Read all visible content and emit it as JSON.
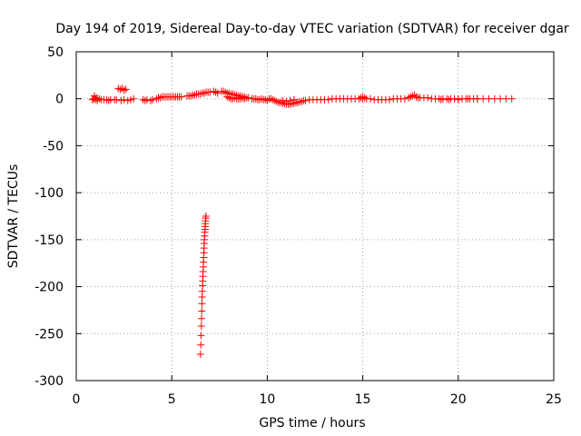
{
  "chart_data": {
    "type": "scatter",
    "title": "Day 194 of 2019, Sidereal Day-to-day VTEC variation (SDTVAR) for receiver dgar",
    "xlabel": "GPS time / hours",
    "ylabel": "SDTVAR / TECUs",
    "xlim": [
      0,
      25
    ],
    "ylim": [
      -300,
      50
    ],
    "x_ticks": [
      0,
      5,
      10,
      15,
      20,
      25
    ],
    "y_ticks": [
      50,
      0,
      -50,
      -100,
      -150,
      -200,
      -250,
      -300
    ],
    "grid": true,
    "marker": "+",
    "marker_color": "#ff0000",
    "series": [
      {
        "name": "SDTVAR",
        "points": [
          [
            0.85,
            -1
          ],
          [
            0.9,
            0
          ],
          [
            0.95,
            3
          ],
          [
            1.0,
            -1
          ],
          [
            1.05,
            1
          ],
          [
            1.1,
            -2
          ],
          [
            1.2,
            0
          ],
          [
            1.3,
            -1
          ],
          [
            1.45,
            -1
          ],
          [
            1.6,
            -1
          ],
          [
            1.7,
            -2
          ],
          [
            1.8,
            -1
          ],
          [
            2.0,
            -1
          ],
          [
            2.1,
            -1
          ],
          [
            2.2,
            11
          ],
          [
            2.3,
            10
          ],
          [
            2.4,
            11
          ],
          [
            2.5,
            9
          ],
          [
            2.6,
            10
          ],
          [
            2.35,
            -2
          ],
          [
            2.5,
            -1
          ],
          [
            2.7,
            -2
          ],
          [
            2.85,
            -1
          ],
          [
            3.0,
            0
          ],
          [
            3.5,
            -1
          ],
          [
            3.6,
            -2
          ],
          [
            3.7,
            -1
          ],
          [
            3.9,
            -2
          ],
          [
            4.0,
            -1
          ],
          [
            4.2,
            0
          ],
          [
            4.3,
            1
          ],
          [
            4.4,
            1
          ],
          [
            4.5,
            2
          ],
          [
            4.6,
            2
          ],
          [
            4.7,
            2
          ],
          [
            4.8,
            2
          ],
          [
            4.9,
            2
          ],
          [
            5.0,
            2
          ],
          [
            5.1,
            2
          ],
          [
            5.2,
            2
          ],
          [
            5.3,
            2
          ],
          [
            5.4,
            2
          ],
          [
            5.5,
            2
          ],
          [
            5.8,
            3
          ],
          [
            5.9,
            3
          ],
          [
            6.0,
            3
          ],
          [
            6.1,
            4
          ],
          [
            6.2,
            4
          ],
          [
            6.3,
            5
          ],
          [
            6.4,
            5
          ],
          [
            6.5,
            5
          ],
          [
            6.6,
            6
          ],
          [
            6.7,
            6
          ],
          [
            6.8,
            7
          ],
          [
            6.9,
            7
          ],
          [
            7.0,
            7
          ],
          [
            7.2,
            8
          ],
          [
            7.3,
            7
          ],
          [
            7.4,
            6
          ],
          [
            7.6,
            8
          ],
          [
            7.7,
            8
          ],
          [
            7.8,
            7
          ],
          [
            7.9,
            6
          ],
          [
            8.0,
            6
          ],
          [
            8.1,
            5
          ],
          [
            8.2,
            5
          ],
          [
            8.3,
            4
          ],
          [
            8.4,
            4
          ],
          [
            8.5,
            3
          ],
          [
            8.6,
            3
          ],
          [
            8.7,
            2
          ],
          [
            8.8,
            2
          ],
          [
            8.9,
            1
          ],
          [
            9.0,
            1
          ],
          [
            7.9,
            2
          ],
          [
            8.0,
            1
          ],
          [
            8.1,
            0
          ],
          [
            8.2,
            0
          ],
          [
            8.3,
            1
          ],
          [
            8.4,
            0
          ],
          [
            8.5,
            0
          ],
          [
            8.6,
            0
          ],
          [
            8.7,
            1
          ],
          [
            8.8,
            0
          ],
          [
            9.2,
            0
          ],
          [
            9.3,
            0
          ],
          [
            9.4,
            0
          ],
          [
            9.5,
            -1
          ],
          [
            9.6,
            -1
          ],
          [
            9.7,
            0
          ],
          [
            9.8,
            -1
          ],
          [
            9.9,
            -1
          ],
          [
            10.0,
            -2
          ],
          [
            10.1,
            0
          ],
          [
            10.2,
            0
          ],
          [
            10.3,
            -1
          ],
          [
            10.4,
            -2
          ],
          [
            10.5,
            -3
          ],
          [
            10.6,
            -4
          ],
          [
            10.7,
            -4
          ],
          [
            10.8,
            -5
          ],
          [
            10.9,
            -5
          ],
          [
            11.0,
            -6
          ],
          [
            11.1,
            -6
          ],
          [
            11.2,
            -6
          ],
          [
            11.3,
            -5
          ],
          [
            11.4,
            -5
          ],
          [
            11.5,
            -4
          ],
          [
            11.6,
            -4
          ],
          [
            11.7,
            -3
          ],
          [
            11.8,
            -3
          ],
          [
            11.9,
            -2
          ],
          [
            12.0,
            -2
          ],
          [
            10.8,
            -2
          ],
          [
            11.0,
            -3
          ],
          [
            11.2,
            -2
          ],
          [
            11.4,
            -1
          ],
          [
            12.2,
            -1
          ],
          [
            12.4,
            -1
          ],
          [
            12.6,
            -1
          ],
          [
            12.8,
            -1
          ],
          [
            13.0,
            -1
          ],
          [
            13.2,
            -1
          ],
          [
            13.4,
            0
          ],
          [
            13.6,
            0
          ],
          [
            13.8,
            0
          ],
          [
            14.0,
            0
          ],
          [
            14.2,
            0
          ],
          [
            14.4,
            0
          ],
          [
            14.6,
            0
          ],
          [
            14.8,
            0
          ],
          [
            15.0,
            0
          ],
          [
            15.2,
            0
          ],
          [
            15.4,
            0
          ],
          [
            14.9,
            1
          ],
          [
            15.0,
            2
          ],
          [
            15.1,
            1
          ],
          [
            15.6,
            -1
          ],
          [
            15.8,
            -1
          ],
          [
            16.0,
            -1
          ],
          [
            16.2,
            -1
          ],
          [
            16.4,
            -1
          ],
          [
            16.6,
            0
          ],
          [
            16.8,
            0
          ],
          [
            17.0,
            0
          ],
          [
            17.2,
            0
          ],
          [
            17.4,
            1
          ],
          [
            17.5,
            2
          ],
          [
            17.6,
            3
          ],
          [
            17.7,
            4
          ],
          [
            17.8,
            2
          ],
          [
            17.9,
            1
          ],
          [
            18.0,
            1
          ],
          [
            18.2,
            1
          ],
          [
            18.4,
            1
          ],
          [
            18.6,
            0
          ],
          [
            18.8,
            0
          ],
          [
            19.0,
            0
          ],
          [
            19.2,
            0
          ],
          [
            19.4,
            0
          ],
          [
            19.6,
            0
          ],
          [
            19.8,
            0
          ],
          [
            20.0,
            0
          ],
          [
            20.2,
            0
          ],
          [
            20.4,
            0
          ],
          [
            20.6,
            0
          ],
          [
            20.8,
            0
          ],
          [
            21.0,
            0
          ],
          [
            21.3,
            0
          ],
          [
            21.6,
            0
          ],
          [
            21.9,
            0
          ],
          [
            22.2,
            0
          ],
          [
            22.5,
            0
          ],
          [
            22.8,
            0
          ],
          [
            19.1,
            -1
          ],
          [
            19.5,
            -1
          ],
          [
            20.0,
            -1
          ],
          [
            20.5,
            0
          ],
          [
            21.0,
            0
          ],
          [
            6.5,
            -272
          ],
          [
            6.52,
            -262
          ],
          [
            6.54,
            -252
          ],
          [
            6.55,
            -242
          ],
          [
            6.56,
            -234
          ],
          [
            6.57,
            -226
          ],
          [
            6.58,
            -218
          ],
          [
            6.59,
            -211
          ],
          [
            6.6,
            -205
          ],
          [
            6.61,
            -199
          ],
          [
            6.62,
            -194
          ],
          [
            6.63,
            -189
          ],
          [
            6.64,
            -184
          ],
          [
            6.65,
            -179
          ],
          [
            6.66,
            -174
          ],
          [
            6.67,
            -169
          ],
          [
            6.68,
            -164
          ],
          [
            6.69,
            -159
          ],
          [
            6.7,
            -154
          ],
          [
            6.71,
            -150
          ],
          [
            6.72,
            -146
          ],
          [
            6.73,
            -142
          ],
          [
            6.74,
            -139
          ],
          [
            6.75,
            -136
          ],
          [
            6.76,
            -133
          ],
          [
            6.77,
            -130
          ],
          [
            6.78,
            -127
          ],
          [
            6.79,
            -125
          ]
        ]
      }
    ]
  }
}
